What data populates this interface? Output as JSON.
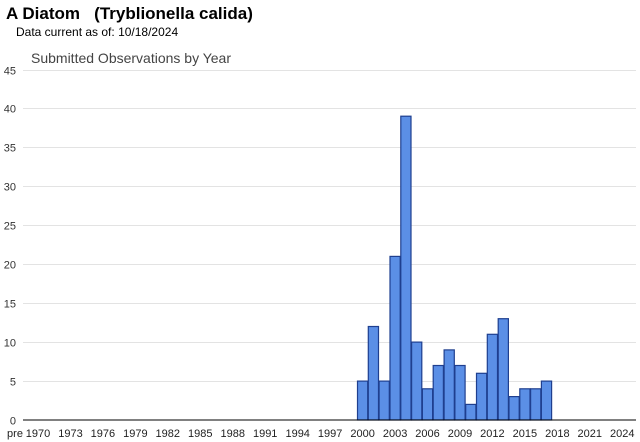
{
  "header": {
    "species_title": "A Diatom   (Tryblionella calida)",
    "data_current_label": "Data current as of:",
    "data_current_date": "10/18/2024"
  },
  "chart_data": {
    "type": "bar",
    "title": "Submitted Observations by Year",
    "xlabel": "",
    "ylabel": "",
    "ylim": [
      0,
      45
    ],
    "yticks": [
      0,
      5,
      10,
      15,
      20,
      25,
      30,
      35,
      40,
      45
    ],
    "grid": true,
    "x_tick_labels": [
      "pre",
      "1970",
      "1973",
      "1976",
      "1979",
      "1982",
      "1985",
      "1988",
      "1991",
      "1994",
      "1997",
      "2000",
      "2003",
      "2006",
      "2009",
      "2012",
      "2015",
      "2018",
      "2021",
      "2024"
    ],
    "categories": [
      "pre",
      "1969",
      "1970",
      "1971",
      "1972",
      "1973",
      "1974",
      "1975",
      "1976",
      "1977",
      "1978",
      "1979",
      "1980",
      "1981",
      "1982",
      "1983",
      "1984",
      "1985",
      "1986",
      "1987",
      "1988",
      "1989",
      "1990",
      "1991",
      "1992",
      "1993",
      "1994",
      "1995",
      "1996",
      "1997",
      "1998",
      "1999",
      "2000",
      "2001",
      "2002",
      "2003",
      "2004",
      "2005",
      "2006",
      "2007",
      "2008",
      "2009",
      "2010",
      "2011",
      "2012",
      "2013",
      "2014",
      "2015",
      "2016",
      "2017",
      "2018",
      "2019",
      "2020",
      "2021",
      "2022",
      "2023",
      "2024"
    ],
    "values": [
      0,
      0,
      0,
      0,
      0,
      0,
      0,
      0,
      0,
      0,
      0,
      0,
      0,
      0,
      0,
      0,
      0,
      0,
      0,
      0,
      0,
      0,
      0,
      0,
      0,
      0,
      0,
      0,
      0,
      0,
      0,
      0,
      5,
      12,
      5,
      21,
      39,
      10,
      4,
      7,
      9,
      7,
      2,
      6,
      11,
      13,
      3,
      4,
      4,
      5,
      0,
      0,
      0,
      0,
      0,
      0,
      0
    ],
    "colors": {
      "bar_fill": "#5b8fe6",
      "bar_stroke": "#1f3f8f",
      "grid": "#e3e3e3",
      "axis": "#000000"
    }
  }
}
